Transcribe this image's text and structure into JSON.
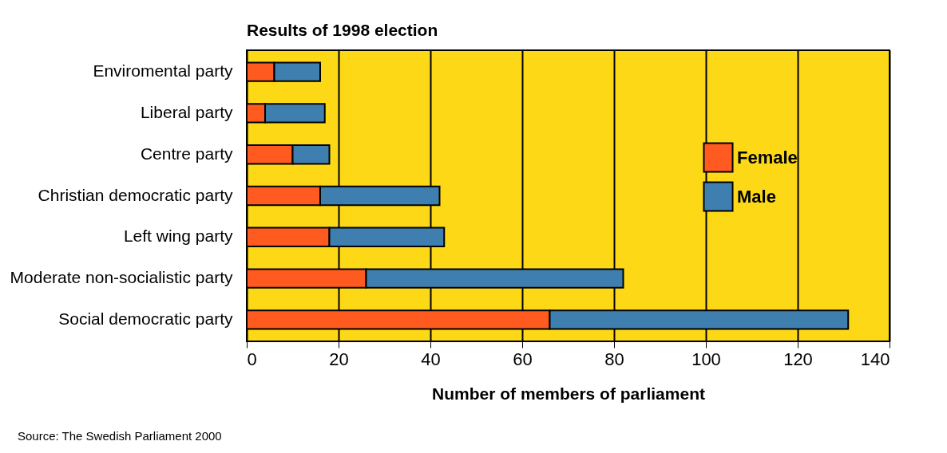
{
  "chart_data": {
    "type": "bar",
    "orientation": "horizontal",
    "stacked": true,
    "title": "Results of 1998 election",
    "xlabel": "Number of members of parliament",
    "categories": [
      "Enviromental party",
      "Liberal party",
      "Centre party",
      "Christian democratic party",
      "Left wing party",
      "Moderate non-socialistic party",
      "Social democratic party"
    ],
    "series": [
      {
        "name": "Female",
        "color": "#ff5a1f",
        "values": [
          6,
          4,
          10,
          16,
          18,
          26,
          66
        ]
      },
      {
        "name": "Male",
        "color": "#3f7fb0",
        "values": [
          10,
          13,
          8,
          26,
          25,
          56,
          65
        ]
      }
    ],
    "xlim": [
      0,
      140
    ],
    "xticks": [
      0,
      20,
      40,
      60,
      80,
      100,
      120,
      140
    ],
    "grid": "x",
    "legend": "top right",
    "annotations": [
      "Source: The Swedish Parliament 2000"
    ]
  }
}
